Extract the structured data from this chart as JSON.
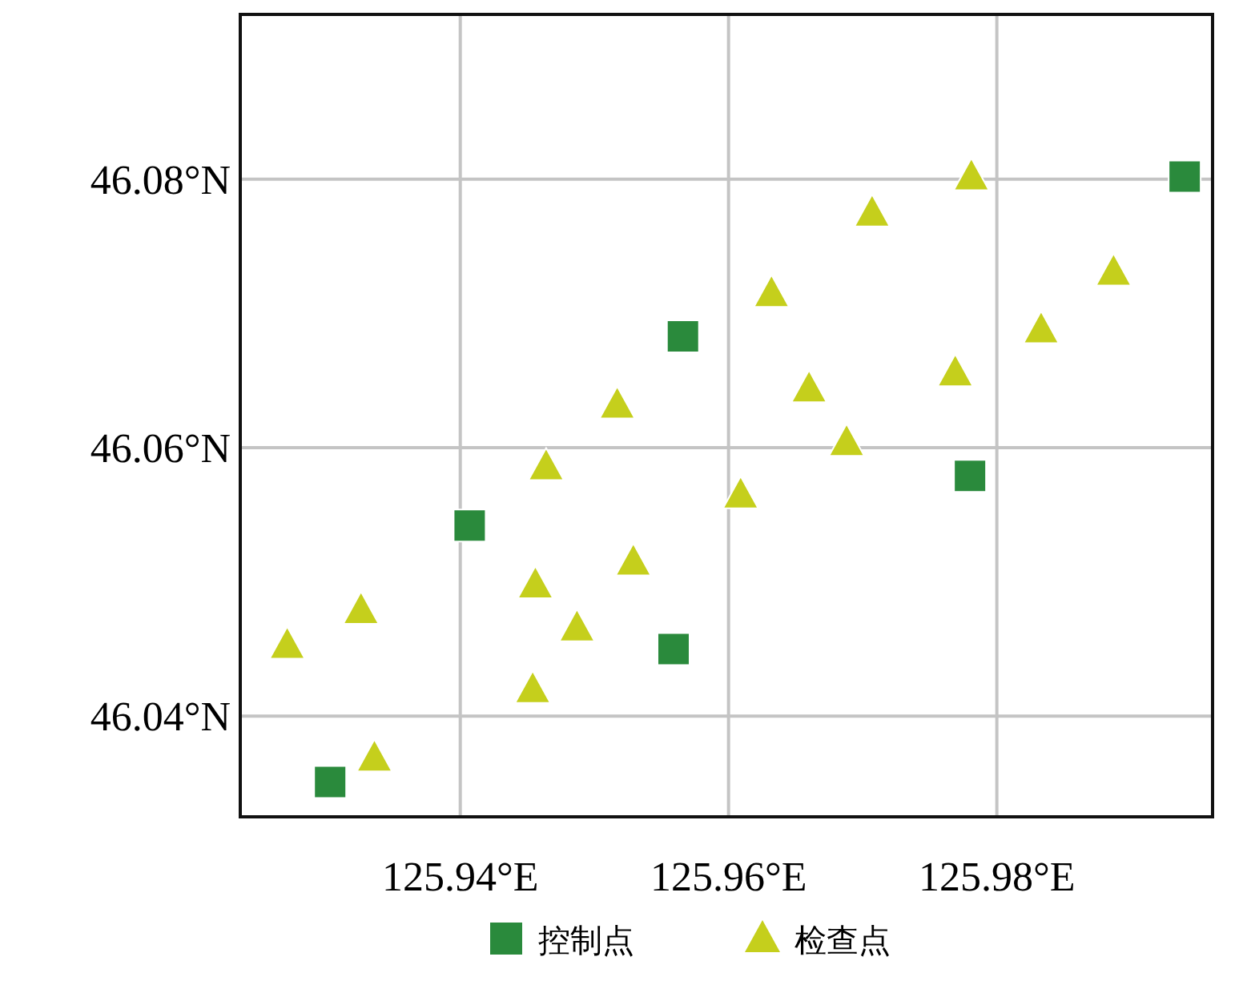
{
  "chart_data": {
    "type": "scatter",
    "xlim": [
      125.9236,
      125.9962
    ],
    "ylim": [
      46.0325,
      46.0924
    ],
    "xticks": [
      {
        "value": 125.94,
        "label": "125.94°E"
      },
      {
        "value": 125.96,
        "label": "125.96°E"
      },
      {
        "value": 125.98,
        "label": "125.98°E"
      }
    ],
    "yticks": [
      {
        "value": 46.04,
        "label": "46.04°N"
      },
      {
        "value": 46.06,
        "label": "46.06°N"
      },
      {
        "value": 46.08,
        "label": "46.08°N"
      }
    ],
    "grid": true,
    "legend": "bottom",
    "series": [
      {
        "name": "控制点",
        "color": "#2a8a3c",
        "marker": "square",
        "x": [
          125.9303,
          125.9407,
          125.9566,
          125.9559,
          125.978,
          125.994
        ],
        "values": [
          46.0351,
          46.0542,
          46.0683,
          46.045,
          46.0579,
          46.0802
        ]
      },
      {
        "name": "检查点",
        "color": "#c5cf1c",
        "marker": "triangle",
        "x": [
          125.9271,
          125.9326,
          125.9336,
          125.9454,
          125.9456,
          125.9464,
          125.9487,
          125.9517,
          125.9529,
          125.9609,
          125.9632,
          125.966,
          125.9688,
          125.9707,
          125.9769,
          125.9781,
          125.9833,
          125.9887
        ],
        "values": [
          46.0453,
          46.0479,
          46.0369,
          46.042,
          46.0498,
          46.0586,
          46.0466,
          46.0632,
          46.0515,
          46.0565,
          46.0715,
          46.0644,
          46.0604,
          46.0775,
          46.0656,
          46.0802,
          46.0688,
          46.0731
        ]
      }
    ]
  }
}
